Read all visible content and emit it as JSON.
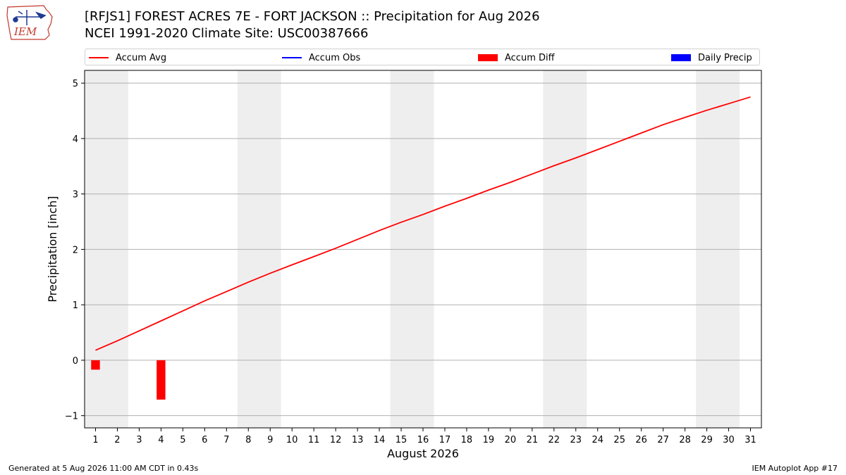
{
  "title": {
    "line1": "[RFJS1] FOREST ACRES 7E - FORT JACKSON :: Precipitation for Aug 2026",
    "line2": "NCEI 1991-2020 Climate Site: USC00387666"
  },
  "logo": {
    "text": "IEM"
  },
  "legend": [
    {
      "label": "Accum Avg",
      "kind": "line",
      "color": "#ff0000"
    },
    {
      "label": "Accum Obs",
      "kind": "line",
      "color": "#0000ff"
    },
    {
      "label": "Accum Diff",
      "kind": "patch",
      "color": "#ff0000"
    },
    {
      "label": "Daily Precip",
      "kind": "patch",
      "color": "#0000ff"
    }
  ],
  "footer": {
    "left": "Generated at 5 Aug 2026 11:00 AM CDT in 0.43s",
    "right": "IEM Autoplot App #17"
  },
  "colors": {
    "weekend_shade": "#eeeeee",
    "grid": "#b0b0b0"
  },
  "chart_data": {
    "type": "line",
    "title": "[RFJS1] FOREST ACRES 7E - FORT JACKSON :: Precipitation for Aug 2026",
    "subtitle": "NCEI 1991-2020 Climate Site: USC00387666",
    "xlabel": "August 2026",
    "ylabel": "Precipitation [inch]",
    "xlim": [
      0.5,
      31.5
    ],
    "ylim": [
      -1.22,
      5.23
    ],
    "x_ticks": [
      1,
      2,
      3,
      4,
      5,
      6,
      7,
      8,
      9,
      10,
      11,
      12,
      13,
      14,
      15,
      16,
      17,
      18,
      19,
      20,
      21,
      22,
      23,
      24,
      25,
      26,
      27,
      28,
      29,
      30,
      31
    ],
    "y_ticks": [
      -1,
      0,
      1,
      2,
      3,
      4,
      5
    ],
    "grid": "horizontal",
    "legend_position": "top",
    "shaded_day_ranges": [
      [
        0.5,
        2.5
      ],
      [
        7.5,
        9.5
      ],
      [
        14.5,
        16.5
      ],
      [
        21.5,
        23.5
      ],
      [
        28.5,
        30.5
      ]
    ],
    "series": [
      {
        "name": "Accum Avg",
        "kind": "line",
        "color": "#ff0000",
        "x": [
          1,
          2,
          3,
          4,
          5,
          6,
          7,
          8,
          9,
          10,
          11,
          12,
          13,
          14,
          15,
          16,
          17,
          18,
          19,
          20,
          21,
          22,
          23,
          24,
          25,
          26,
          27,
          28,
          29,
          30,
          31
        ],
        "values": [
          0.18,
          0.35,
          0.53,
          0.71,
          0.89,
          1.07,
          1.24,
          1.41,
          1.57,
          1.72,
          1.87,
          2.02,
          2.18,
          2.34,
          2.49,
          2.63,
          2.78,
          2.92,
          3.07,
          3.21,
          3.36,
          3.51,
          3.65,
          3.8,
          3.95,
          4.1,
          4.25,
          4.38,
          4.51,
          4.63,
          4.75
        ]
      },
      {
        "name": "Accum Obs",
        "kind": "line",
        "color": "#0000ff",
        "x": [],
        "values": []
      },
      {
        "name": "Accum Diff",
        "kind": "bar",
        "color": "#ff0000",
        "x": [
          1,
          4
        ],
        "values": [
          -0.17,
          -0.71
        ]
      },
      {
        "name": "Daily Precip",
        "kind": "bar",
        "color": "#0000ff",
        "x": [],
        "values": []
      }
    ]
  }
}
